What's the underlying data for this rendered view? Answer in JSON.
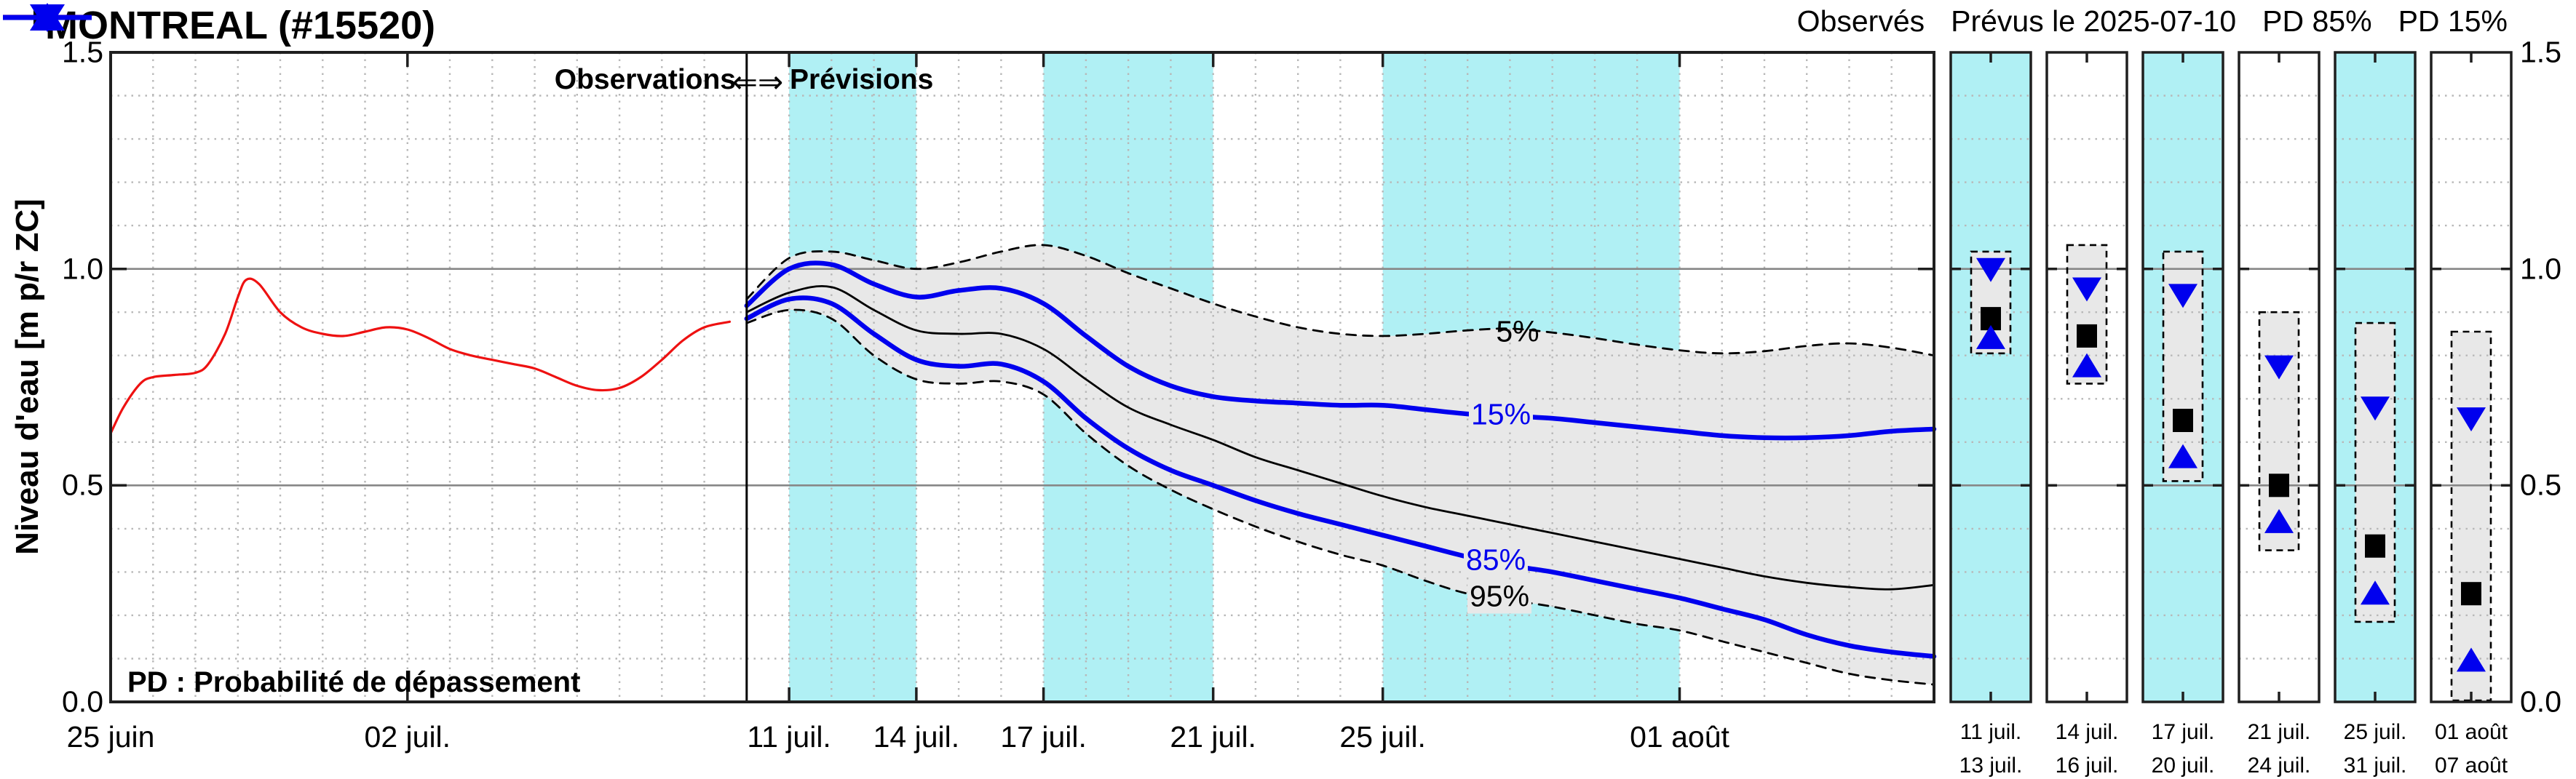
{
  "title": "MONTREAL (#15520)",
  "legend": {
    "items": [
      {
        "label": "Observés",
        "series": "observed",
        "marker": "none"
      },
      {
        "label": "Prévus le 2025-07-10",
        "series": "forecast-median",
        "marker": "square"
      },
      {
        "label": "PD 85%",
        "series": "pd85",
        "marker": "triangle-up"
      },
      {
        "label": "PD 15%",
        "series": "pd15",
        "marker": "triangle-down"
      }
    ]
  },
  "annotations": {
    "observations": "Observations",
    "arrow": "⇐⇒",
    "previsions": "Prévisions",
    "pd_note": "PD : Probabilité de dépassement"
  },
  "curve_labels": {
    "p5": "5%",
    "p15": "15%",
    "p85": "85%",
    "p95": "95%"
  },
  "y_axis_title": "Niveau d'eau [m p/r ZC]",
  "colors": {
    "red": "#ee1111",
    "blue": "#0000ee",
    "black": "#000000",
    "band": "#b0f0f4",
    "envelope": "#e8e8e8",
    "grid_dot": "#b8b8b8",
    "grid_solid": "#878787",
    "axis": "#1f1f1f"
  },
  "chart_data": {
    "type": "line",
    "title": "MONTREAL (#15520)",
    "ylabel": "Niveau d'eau [m p/r ZC]",
    "ylim": [
      0,
      1.5
    ],
    "x_unit": "jours depuis le 25 juin 2025",
    "xlim_days": [
      0,
      43
    ],
    "forecast_start_day": 15,
    "grid": "dotted minor 0.1, solid at 0.5 and 1.0",
    "y_ticks": [
      {
        "v": 0.0,
        "label": "0.0"
      },
      {
        "v": 0.5,
        "label": "0.5"
      },
      {
        "v": 1.0,
        "label": "1.0"
      },
      {
        "v": 1.5,
        "label": "1.5"
      }
    ],
    "x_ticks": [
      {
        "day": 0,
        "label": "25 juin"
      },
      {
        "day": 7,
        "label": "02 juil."
      },
      {
        "day": 16,
        "label": "11 juil."
      },
      {
        "day": 19,
        "label": "14 juil."
      },
      {
        "day": 22,
        "label": "17 juil."
      },
      {
        "day": 26,
        "label": "21 juil."
      },
      {
        "day": 30,
        "label": "25 juil."
      },
      {
        "day": 37,
        "label": "01 août"
      }
    ],
    "cyan_bands": [
      [
        16,
        19
      ],
      [
        22,
        26
      ],
      [
        30,
        37
      ]
    ],
    "observed": {
      "name": "Observés",
      "x": [
        0,
        0.3,
        0.7,
        1,
        1.5,
        2,
        2.3,
        2.7,
        3,
        3.2,
        3.5,
        4,
        4.5,
        5,
        5.5,
        6,
        6.5,
        7,
        7.5,
        8,
        8.5,
        9,
        9.5,
        10,
        10.5,
        11,
        11.5,
        12,
        12.5,
        13,
        13.5,
        14,
        14.6
      ],
      "values": [
        0.62,
        0.68,
        0.735,
        0.75,
        0.755,
        0.76,
        0.78,
        0.85,
        0.935,
        0.975,
        0.965,
        0.9,
        0.865,
        0.85,
        0.845,
        0.855,
        0.865,
        0.86,
        0.84,
        0.815,
        0.8,
        0.79,
        0.78,
        0.77,
        0.75,
        0.73,
        0.72,
        0.725,
        0.75,
        0.79,
        0.835,
        0.865,
        0.878
      ]
    },
    "forecast_days": [
      15,
      16,
      17,
      18,
      19,
      20,
      21,
      22,
      23,
      24,
      25,
      26,
      27,
      28,
      29,
      30,
      31,
      32,
      33,
      34,
      35,
      36,
      37,
      38,
      39,
      40,
      41,
      42,
      43
    ],
    "series_forecast": {
      "p5": [
        0.93,
        1.025,
        1.04,
        1.02,
        1.0,
        1.015,
        1.04,
        1.055,
        1.03,
        0.99,
        0.955,
        0.92,
        0.89,
        0.865,
        0.85,
        0.845,
        0.85,
        0.858,
        0.862,
        0.853,
        0.84,
        0.825,
        0.812,
        0.805,
        0.81,
        0.822,
        0.828,
        0.818,
        0.8
      ],
      "p15": [
        0.915,
        1.0,
        1.01,
        0.965,
        0.935,
        0.95,
        0.955,
        0.92,
        0.845,
        0.775,
        0.73,
        0.705,
        0.695,
        0.69,
        0.685,
        0.685,
        0.675,
        0.665,
        0.66,
        0.655,
        0.645,
        0.635,
        0.625,
        0.615,
        0.61,
        0.61,
        0.615,
        0.625,
        0.63
      ],
      "median": [
        0.9,
        0.945,
        0.958,
        0.905,
        0.858,
        0.85,
        0.85,
        0.815,
        0.745,
        0.68,
        0.64,
        0.605,
        0.565,
        0.535,
        0.505,
        0.475,
        0.45,
        0.43,
        0.41,
        0.39,
        0.37,
        0.35,
        0.33,
        0.31,
        0.29,
        0.275,
        0.265,
        0.26,
        0.27
      ],
      "p85": [
        0.885,
        0.93,
        0.92,
        0.85,
        0.79,
        0.775,
        0.78,
        0.74,
        0.655,
        0.585,
        0.535,
        0.5,
        0.465,
        0.435,
        0.41,
        0.385,
        0.36,
        0.335,
        0.315,
        0.3,
        0.28,
        0.26,
        0.24,
        0.215,
        0.19,
        0.155,
        0.13,
        0.115,
        0.105
      ],
      "p95": [
        0.875,
        0.905,
        0.885,
        0.8,
        0.745,
        0.735,
        0.74,
        0.71,
        0.62,
        0.545,
        0.49,
        0.445,
        0.405,
        0.37,
        0.34,
        0.315,
        0.28,
        0.25,
        0.235,
        0.22,
        0.2,
        0.18,
        0.165,
        0.14,
        0.115,
        0.09,
        0.065,
        0.05,
        0.04
      ]
    },
    "panels": [
      {
        "label_top": "11 juil.",
        "label_bottom": "13 juil.",
        "cyan": true,
        "p5": 1.04,
        "pd15": 1.0,
        "median": 0.885,
        "pd85": 0.84,
        "p95": 0.805
      },
      {
        "label_top": "14 juil.",
        "label_bottom": "16 juil.",
        "cyan": false,
        "p5": 1.055,
        "pd15": 0.955,
        "median": 0.845,
        "pd85": 0.775,
        "p95": 0.735
      },
      {
        "label_top": "17 juil.",
        "label_bottom": "20 juil.",
        "cyan": true,
        "p5": 1.04,
        "pd15": 0.94,
        "median": 0.65,
        "pd85": 0.565,
        "p95": 0.51
      },
      {
        "label_top": "21 juil.",
        "label_bottom": "24 juil.",
        "cyan": false,
        "p5": 0.9,
        "pd15": 0.775,
        "median": 0.5,
        "pd85": 0.415,
        "p95": 0.35
      },
      {
        "label_top": "25 juil.",
        "label_bottom": "31 juil.",
        "cyan": true,
        "p5": 0.875,
        "pd15": 0.68,
        "median": 0.36,
        "pd85": 0.25,
        "p95": 0.185
      },
      {
        "label_top": "01 août",
        "label_bottom": "07 août",
        "cyan": false,
        "p5": 0.855,
        "pd15": 0.655,
        "median": 0.25,
        "pd85": 0.095,
        "p95": 0.0
      }
    ]
  }
}
